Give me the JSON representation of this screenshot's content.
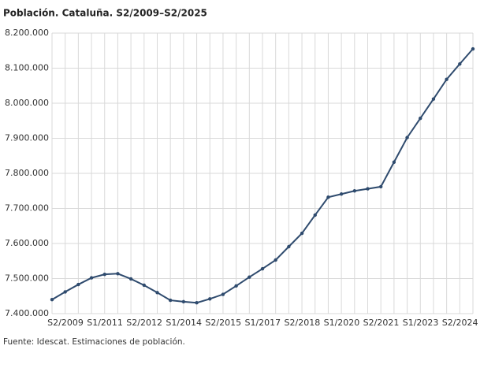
{
  "chart_data": {
    "type": "line",
    "title": "Población. Cataluña. S2/2009–S2/2025",
    "source": "Fuente: Idescat. Estimaciones de población.",
    "categories": [
      "S2/2009",
      null,
      null,
      "S1/2011",
      null,
      null,
      "S2/2012",
      null,
      null,
      "S1/2014",
      null,
      null,
      "S2/2015",
      null,
      null,
      "S1/2017",
      null,
      null,
      "S2/2018",
      null,
      null,
      "S1/2020",
      null,
      null,
      "S2/2021",
      null,
      null,
      "S1/2023",
      null,
      null,
      "S2/2024",
      null,
      null
    ],
    "series": [
      {
        "name": "Población",
        "color": "#2f4b6e",
        "values": [
          7440000,
          7462000,
          7483000,
          7502000,
          7512000,
          7514000,
          7499000,
          7481000,
          7460000,
          7438000,
          7434000,
          7431000,
          7442000,
          7455000,
          7479000,
          7504000,
          7528000,
          7553000,
          7591000,
          7629000,
          7681000,
          7732000,
          7741000,
          7750000,
          7756000,
          7762000,
          7832000,
          7902000,
          7957000,
          8012000,
          8068000,
          8112000,
          8155000
        ]
      }
    ],
    "ylim": [
      7400000,
      8200000
    ],
    "yticks": [
      {
        "value": 7400000,
        "label": "7.400.000"
      },
      {
        "value": 7500000,
        "label": "7.500.000"
      },
      {
        "value": 7600000,
        "label": "7.600.000"
      },
      {
        "value": 7700000,
        "label": "7.700.000"
      },
      {
        "value": 7800000,
        "label": "7.800.000"
      },
      {
        "value": 7900000,
        "label": "7.900.000"
      },
      {
        "value": 8000000,
        "label": "8.000.000"
      },
      {
        "value": 8100000,
        "label": "8.100.000"
      },
      {
        "value": 8200000,
        "label": "8.200.000"
      }
    ],
    "grid": true
  }
}
